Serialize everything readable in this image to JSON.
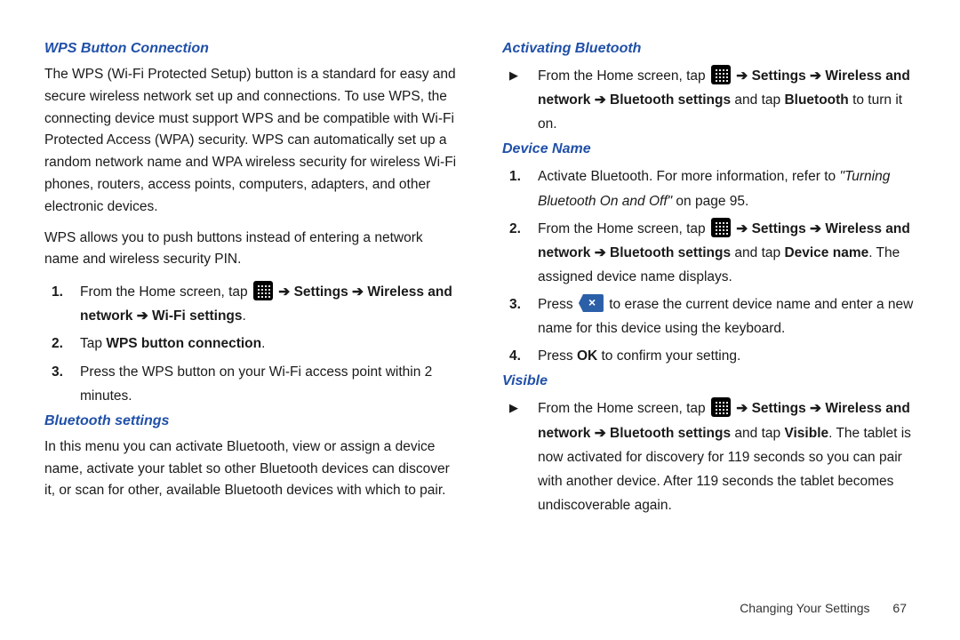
{
  "colors": {
    "heading": "#2050a8",
    "text": "#1a1a1a",
    "background": "#ffffff",
    "delete_icon_bg": "#2b5fa8",
    "grid_icon_bg": "#000000"
  },
  "left": {
    "h1": "WPS Button Connection",
    "p1": "The WPS (Wi-Fi Protected Setup) button is a standard for easy and secure wireless network set up and connections. To use WPS, the connecting device must support WPS and be compatible with Wi-Fi Protected Access (WPA) security. WPS can automatically set up a random network name and WPA wireless security for wireless Wi-Fi phones, routers, access points, computers, adapters, and other electronic devices.",
    "p2": "WPS allows you to push buttons instead of entering a network name and wireless security PIN.",
    "steps1": {
      "s1_pre": "From the Home screen, tap ",
      "s1_post_arrow": " ➔ ",
      "s1_settings": "Settings",
      "s1_wireless": "Wireless and network",
      "s1_wifi": "Wi-Fi settings",
      "s2_pre": "Tap ",
      "s2_bold": "WPS button connection",
      "s3": "Press the WPS button on your Wi-Fi access point within 2 minutes."
    },
    "h2": "Bluetooth settings",
    "p3": "In this menu you can activate Bluetooth, view or assign a device name, activate your tablet so other Bluetooth devices can discover it, or scan for other, available Bluetooth devices with which to pair."
  },
  "right": {
    "h1": "Activating Bluetooth",
    "activate": {
      "pre": "From the Home screen, tap ",
      "arrow": " ➔ ",
      "settings": "Settings",
      "wireless": "Wireless and network",
      "bt_settings": "Bluetooth settings",
      "tap_and": " and tap ",
      "bluetooth": "Bluetooth",
      "tail": " to turn it on."
    },
    "h2": "Device Name",
    "device": {
      "s1_pre": "Activate Bluetooth. For more information, refer to ",
      "s1_ref": "\"Turning Bluetooth On and Off\"",
      "s1_tail": "  on page 95.",
      "s2_pre": "From the Home screen, tap ",
      "s2_arrow": " ➔ ",
      "s2_settings": "Settings",
      "s2_wireless": "Wireless and network",
      "s2_bt": "Bluetooth settings",
      "s2_and": " and tap ",
      "s2_dn": "Device name",
      "s2_tail": ". The assigned device name displays.",
      "s3_pre": "Press ",
      "s3_tail": " to erase the current device name and enter a new name for this device using the keyboard.",
      "s4_pre": "Press ",
      "s4_ok": "OK",
      "s4_tail": " to confirm your setting."
    },
    "h3": "Visible",
    "visible": {
      "pre": "From the Home screen, tap ",
      "arrow": " ➔ ",
      "settings": "Settings",
      "wireless": "Wireless and network",
      "bt": "Bluetooth settings",
      "and": " and tap ",
      "vis": "Visible",
      "tail": ". The tablet is now activated for discovery for 119 seconds so you can pair with another device. After 119 seconds the tablet becomes undiscoverable again."
    }
  },
  "footer": {
    "text": "Changing Your Settings",
    "page": "67"
  }
}
